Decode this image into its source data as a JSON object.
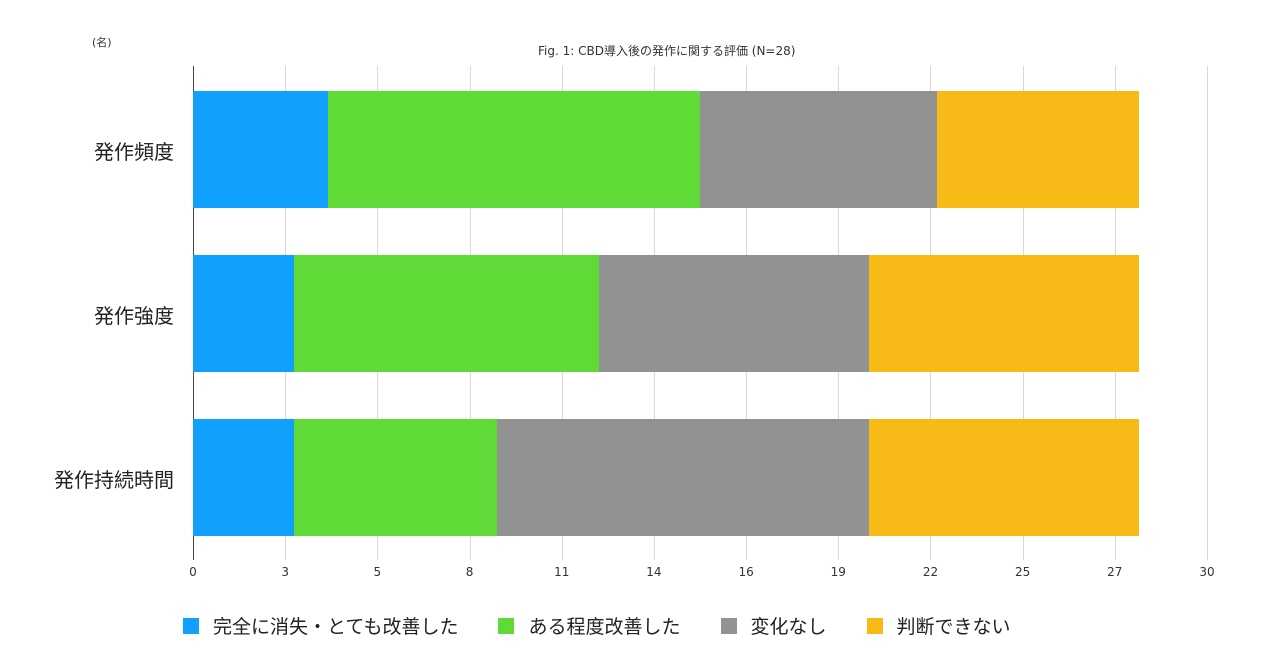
{
  "chart_data": {
    "type": "bar",
    "orientation": "horizontal",
    "stacked": true,
    "title": "Fig. 1: CBD導入後の発作に関する評価  (N=28)",
    "unit_label": "(名)",
    "xlabel": "",
    "ylabel": "",
    "xlim": [
      0,
      30
    ],
    "grid": true,
    "legend_position": "bottom",
    "x_tick_labels": [
      "0",
      "3",
      "5",
      "8",
      "11",
      "14",
      "16",
      "19",
      "22",
      "25",
      "27",
      "30"
    ],
    "categories": [
      "発作頻度",
      "発作強度",
      "発作持続時間"
    ],
    "series": [
      {
        "name": "完全に消失・とても改善した",
        "color": "#12a0ff",
        "values": [
          4,
          3,
          3
        ]
      },
      {
        "name": "ある程度改善した",
        "color": "#5fda37",
        "values": [
          11,
          9,
          6
        ]
      },
      {
        "name": "変化なし",
        "color": "#929292",
        "values": [
          7,
          8,
          11
        ]
      },
      {
        "name": "判断できない",
        "color": "#f8ba17",
        "values": [
          6,
          8,
          8
        ]
      }
    ]
  }
}
